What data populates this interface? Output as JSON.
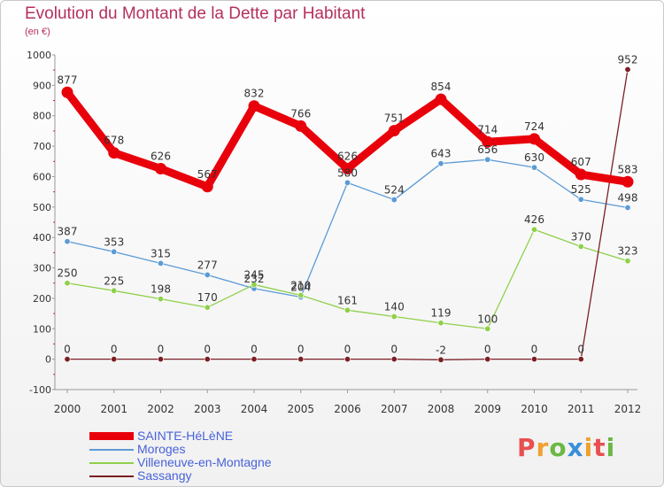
{
  "title": "Evolution du Montant de la Dette par Habitant",
  "subtitle": "(en €)",
  "brand": {
    "letters": [
      {
        "ch": "P",
        "color": "#e8504f"
      },
      {
        "ch": "r",
        "color": "#f0a030"
      },
      {
        "ch": "o",
        "color": "#6bb844"
      },
      {
        "ch": "x",
        "color": "#3b8fd9"
      },
      {
        "ch": "i",
        "color": "#f0a030"
      },
      {
        "ch": "t",
        "color": "#e8504f"
      },
      {
        "ch": "i",
        "color": "#6bb844"
      }
    ]
  },
  "chart_data": {
    "type": "line",
    "x": [
      "2000",
      "2001",
      "2002",
      "2003",
      "2004",
      "2005",
      "2006",
      "2007",
      "2008",
      "2009",
      "2010",
      "2011",
      "2012"
    ],
    "ylim": [
      -100,
      1000
    ],
    "yticks": [
      -100,
      0,
      100,
      200,
      300,
      400,
      500,
      600,
      700,
      800,
      900,
      1000
    ],
    "grid": false,
    "legend_position": "bottom-left",
    "series": [
      {
        "name": "SAINTE-HéLèNE",
        "color": "#e8000b",
        "values": [
          877,
          678,
          626,
          567,
          832,
          766,
          626,
          751,
          854,
          714,
          724,
          607,
          583
        ],
        "labels": [
          "877",
          "678",
          "626",
          "567",
          "832",
          "766",
          "626",
          "751",
          "854",
          "714",
          "724",
          "607",
          "583"
        ]
      },
      {
        "name": "Moroges",
        "color": "#5b9bd5",
        "values": [
          387,
          353,
          315,
          277,
          232,
          204,
          580,
          524,
          643,
          656,
          630,
          525,
          498
        ],
        "labels": [
          "387",
          "353",
          "315",
          "277",
          "232",
          "204",
          "580",
          "524",
          "643",
          "656",
          "630",
          "525",
          "498"
        ]
      },
      {
        "name": "Villeneuve-en-Montagne",
        "color": "#8fd04a",
        "values": [
          250,
          225,
          198,
          170,
          245,
          210,
          161,
          140,
          119,
          100,
          426,
          370,
          323
        ],
        "labels": [
          "250",
          "225",
          "198",
          "170",
          "245",
          "210",
          "161",
          "140",
          "119",
          "100",
          "426",
          "370",
          "323"
        ]
      },
      {
        "name": "Sassangy",
        "color": "#7a1f24",
        "values": [
          0,
          0,
          0,
          0,
          0,
          0,
          0,
          0,
          -2,
          0,
          0,
          0,
          952
        ],
        "labels": [
          "0",
          "0",
          "0",
          "0",
          "0",
          "0",
          "0",
          "0",
          "-2",
          "0",
          "0",
          "0",
          "952"
        ]
      }
    ]
  }
}
